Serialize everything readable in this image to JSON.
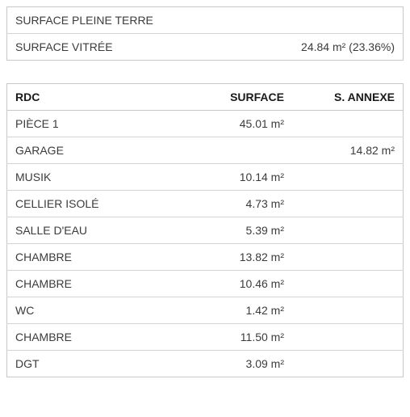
{
  "summary": {
    "rows": [
      {
        "label": "SURFACE PLEINE TERRE",
        "value": ""
      },
      {
        "label": "SURFACE VITRÉE",
        "value": "24.84 m² (23.36%)"
      }
    ]
  },
  "rdc": {
    "headers": {
      "name": "RDC",
      "surface": "SURFACE",
      "annexe": "S. ANNEXE"
    },
    "rows": [
      {
        "name": "PIÈCE 1",
        "surface": "45.01 m²",
        "annexe": ""
      },
      {
        "name": "GARAGE",
        "surface": "",
        "annexe": "14.82 m²"
      },
      {
        "name": "MUSIK",
        "surface": "10.14 m²",
        "annexe": ""
      },
      {
        "name": "CELLIER ISOLÉ",
        "surface": "4.73 m²",
        "annexe": ""
      },
      {
        "name": "SALLE D'EAU",
        "surface": "5.39 m²",
        "annexe": ""
      },
      {
        "name": "CHAMBRE",
        "surface": "13.82 m²",
        "annexe": ""
      },
      {
        "name": "CHAMBRE",
        "surface": "10.46 m²",
        "annexe": ""
      },
      {
        "name": "WC",
        "surface": "1.42 m²",
        "annexe": ""
      },
      {
        "name": "CHAMBRE",
        "surface": "11.50 m²",
        "annexe": ""
      },
      {
        "name": "DGT",
        "surface": "3.09 m²",
        "annexe": ""
      }
    ]
  },
  "colors": {
    "border": "#c8c8c8",
    "row_border": "#d4d4d4",
    "text": "#3b3b3b",
    "header_text": "#1a1a1a",
    "background": "#ffffff"
  }
}
